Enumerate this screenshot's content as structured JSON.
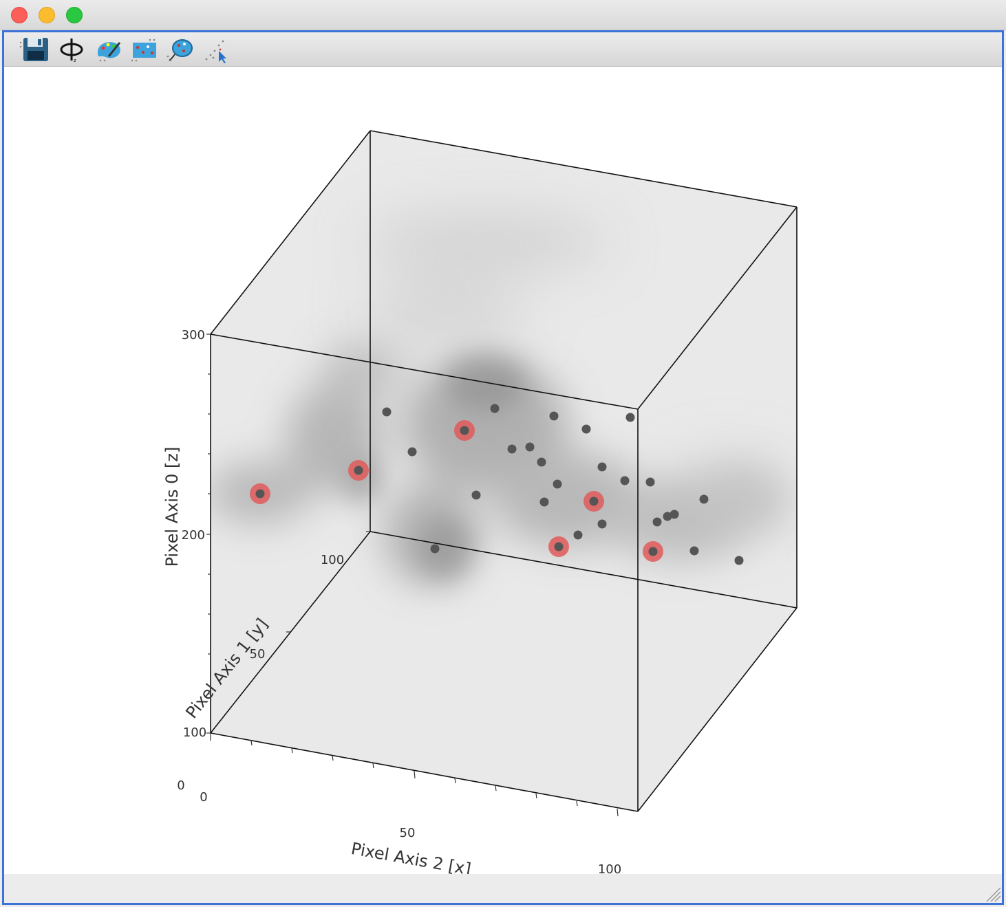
{
  "window": {
    "controls": [
      "close",
      "minimize",
      "zoom"
    ]
  },
  "toolbar": {
    "tools": [
      {
        "name": "save-icon"
      },
      {
        "name": "rotate-icon"
      },
      {
        "name": "paint-brush-icon"
      },
      {
        "name": "scatter-select-icon"
      },
      {
        "name": "lasso-select-icon"
      },
      {
        "name": "point-pick-icon"
      }
    ]
  },
  "plot": {
    "colors": {
      "point": "#555555",
      "highlight": "#e05a5a",
      "box": "#111111"
    },
    "axes": {
      "x": {
        "label": "Pixel Axis 2 [x]",
        "ticks": [
          "0",
          "50",
          "100"
        ]
      },
      "y": {
        "label": "Pixel Axis 1 [y]",
        "ticks": [
          "0",
          "50",
          "100"
        ]
      },
      "z": {
        "label": "Pixel Axis 0 [z]",
        "ticks": [
          "200",
          "300"
        ]
      }
    }
  }
}
